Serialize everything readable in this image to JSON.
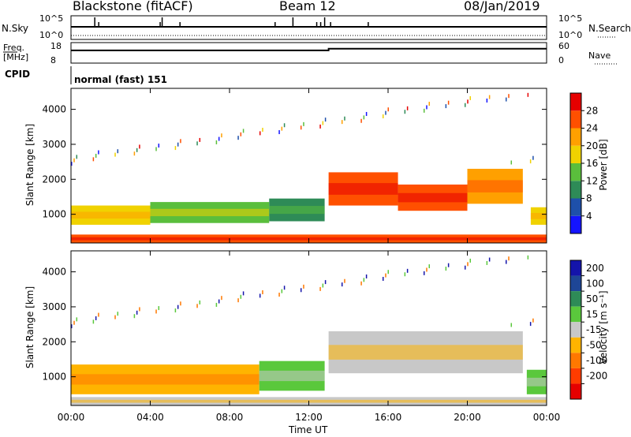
{
  "header": {
    "station": "Blackstone (fitACF)",
    "beam": "Beam 12",
    "date": "08/Jan/2019"
  },
  "noise_panel": {
    "left_label": "N.Sky",
    "right_label": "N.Search",
    "left_ticks": [
      "10^5",
      "10^0"
    ],
    "right_ticks": [
      "10^5",
      "10^0"
    ],
    "spikes_x_hours": [
      1.2,
      1.4,
      4.5,
      4.6,
      5.5,
      10.3,
      11.2,
      12.4,
      12.6,
      12.8,
      13.1,
      15.0
    ]
  },
  "freq_panel": {
    "left_label_1": "Freq.",
    "left_label_2": "[MHz]",
    "right_label": "Nave",
    "left_ticks": [
      "18",
      "8"
    ],
    "right_ticks": [
      "60",
      "0"
    ],
    "freq_step_hour": 13.0,
    "freq_before": 0.62,
    "freq_after": 0.7
  },
  "cpid": {
    "label": "CPID",
    "mode": "normal (fast) 151"
  },
  "power_panel": {
    "ylabel": "Slant Range [km]",
    "yticks": [
      1000,
      2000,
      3000,
      4000
    ],
    "colorbar_label": "Power [dB]",
    "colorbar_ticks": [
      "4",
      "8",
      "12",
      "16",
      "20",
      "24",
      "28"
    ],
    "colors": [
      "#1414ff",
      "#1e50aa",
      "#2e8b57",
      "#5abe3c",
      "#f0d200",
      "#ffa000",
      "#ff5000",
      "#e60000"
    ]
  },
  "velocity_panel": {
    "ylabel": "Slant Range [km]",
    "yticks": [
      1000,
      2000,
      3000,
      4000
    ],
    "colorbar_label": "Velocity [m s⁻¹]",
    "colorbar_ticks": [
      "200",
      "100",
      "50",
      "15",
      "-15",
      "-50",
      "-100",
      "-200"
    ],
    "colors": [
      "#1414aa",
      "#1e4696",
      "#2e8b57",
      "#5ac83c",
      "#c8c8c8",
      "#ffb400",
      "#ff7800",
      "#ff3c00",
      "#e60000"
    ]
  },
  "xaxis": {
    "label": "Time UT",
    "ticks": [
      "00:00",
      "04:00",
      "08:00",
      "12:00",
      "16:00",
      "20:00",
      "00:00"
    ]
  },
  "chart_data": {
    "type": "heatmap",
    "xlabel": "Time UT",
    "ylabel": "Slant Range [km]",
    "xlim_hours": [
      0,
      24
    ],
    "ylim_km": [
      180,
      4600
    ],
    "power_bands": [
      {
        "t0": 0.0,
        "t1": 4.0,
        "r0": 700,
        "r1": 1250,
        "level": 4
      },
      {
        "t0": 4.0,
        "t1": 10.0,
        "r0": 750,
        "r1": 1350,
        "level": 3
      },
      {
        "t0": 10.0,
        "t1": 12.8,
        "r0": 800,
        "r1": 1450,
        "level": 2
      },
      {
        "t0": 13.0,
        "t1": 16.5,
        "r0": 1250,
        "r1": 2200,
        "level": 6
      },
      {
        "t0": 16.5,
        "t1": 20.0,
        "r0": 1100,
        "r1": 1850,
        "level": 6
      },
      {
        "t0": 20.0,
        "t1": 22.8,
        "r0": 1300,
        "r1": 2300,
        "level": 5
      },
      {
        "t0": 23.2,
        "t1": 24.0,
        "r0": 700,
        "r1": 1200,
        "level": 4
      },
      {
        "t0": 0.0,
        "t1": 24.0,
        "r0": 180,
        "r1": 420,
        "level": 6
      }
    ],
    "velocity_bands": [
      {
        "t0": 0.0,
        "t1": 9.5,
        "r0": 500,
        "r1": 1350,
        "level": 5
      },
      {
        "t0": 9.5,
        "t1": 12.8,
        "r0": 600,
        "r1": 1450,
        "level": 3
      },
      {
        "t0": 13.0,
        "t1": 22.8,
        "r0": 1100,
        "r1": 2300,
        "level": 4
      },
      {
        "t0": 23.0,
        "t1": 24.0,
        "r0": 500,
        "r1": 1200,
        "level": 3
      },
      {
        "t0": 0.0,
        "t1": 24.0,
        "r0": 180,
        "r1": 420,
        "level": 4
      }
    ]
  }
}
